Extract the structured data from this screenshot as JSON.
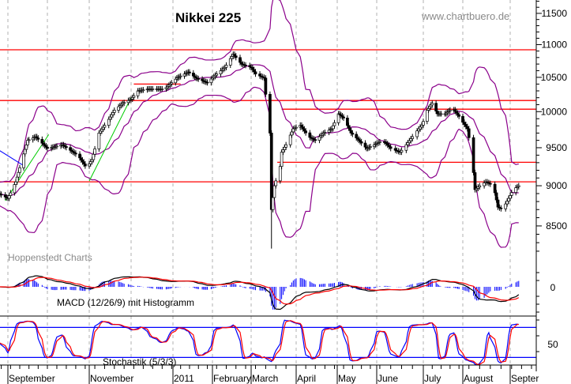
{
  "chart_data": {
    "type": "candlestick",
    "title": "Nikkei 225",
    "watermark": "www.chartbuero.de",
    "source": "Hoppenstedt Charts",
    "y_scale": "log",
    "ylim": [
      8100,
      11700
    ],
    "y_ticks": [
      11500,
      11000,
      10500,
      10000,
      9500,
      9000,
      8500
    ],
    "grid": "vertical dashed at month starts",
    "x_tick_labels": [
      {
        "date": "2010-09-01",
        "label": "September"
      },
      {
        "date": "2010-11-01",
        "label": "November"
      },
      {
        "date": "2011-01-01",
        "label": "2011"
      },
      {
        "date": "2011-02-01",
        "label": "February"
      },
      {
        "date": "2011-03-01",
        "label": "March"
      },
      {
        "date": "2011-04-01",
        "label": "April"
      },
      {
        "date": "2011-05-01",
        "label": "May"
      },
      {
        "date": "2011-06-01",
        "label": "June"
      },
      {
        "date": "2011-07-01",
        "label": "July"
      },
      {
        "date": "2011-08-01",
        "label": "August"
      },
      {
        "date": "2011-09-01",
        "label": "Septer"
      }
    ],
    "closes": [
      [
        "2010-08-25",
        8900
      ],
      [
        "2010-09-01",
        8840
      ],
      [
        "2010-09-07",
        9050
      ],
      [
        "2010-09-16",
        9600
      ],
      [
        "2010-09-22",
        9650
      ],
      [
        "2010-10-01",
        9490
      ],
      [
        "2010-10-12",
        9540
      ],
      [
        "2010-10-24",
        9390
      ],
      [
        "2010-10-30",
        9230
      ],
      [
        "2010-11-03",
        9340
      ],
      [
        "2010-11-08",
        9700
      ],
      [
        "2010-11-14",
        9860
      ],
      [
        "2010-11-19",
        10020
      ],
      [
        "2010-11-25",
        10120
      ],
      [
        "2010-12-01",
        10180
      ],
      [
        "2010-12-06",
        10300
      ],
      [
        "2010-12-14",
        10330
      ],
      [
        "2010-12-26",
        10330
      ],
      [
        "2011-01-04",
        10490
      ],
      [
        "2011-01-13",
        10580
      ],
      [
        "2011-01-19",
        10490
      ],
      [
        "2011-01-28",
        10420
      ],
      [
        "2011-02-04",
        10550
      ],
      [
        "2011-02-10",
        10650
      ],
      [
        "2011-02-16",
        10850
      ],
      [
        "2011-02-22",
        10700
      ],
      [
        "2011-03-01",
        10650
      ],
      [
        "2011-03-04",
        10550
      ],
      [
        "2011-03-10",
        10490
      ],
      [
        "2011-03-11",
        10250
      ],
      [
        "2011-03-14",
        9700
      ],
      [
        "2011-03-15",
        8700
      ],
      [
        "2011-03-17",
        9000
      ],
      [
        "2011-03-21",
        9250
      ],
      [
        "2011-03-22",
        9440
      ],
      [
        "2011-03-25",
        9540
      ],
      [
        "2011-03-30",
        9760
      ],
      [
        "2011-04-04",
        9810
      ],
      [
        "2011-04-10",
        9650
      ],
      [
        "2011-04-15",
        9600
      ],
      [
        "2011-04-21",
        9700
      ],
      [
        "2011-04-27",
        9760
      ],
      [
        "2011-05-02",
        9970
      ],
      [
        "2011-05-06",
        9910
      ],
      [
        "2011-05-12",
        9700
      ],
      [
        "2011-05-18",
        9600
      ],
      [
        "2011-05-24",
        9490
      ],
      [
        "2011-05-30",
        9540
      ],
      [
        "2011-06-05",
        9600
      ],
      [
        "2011-06-10",
        9490
      ],
      [
        "2011-06-16",
        9440
      ],
      [
        "2011-06-20",
        9540
      ],
      [
        "2011-06-24",
        9650
      ],
      [
        "2011-06-30",
        9810
      ],
      [
        "2011-07-04",
        10020
      ],
      [
        "2011-07-08",
        10120
      ],
      [
        "2011-07-12",
        9970
      ],
      [
        "2011-07-18",
        9970
      ],
      [
        "2011-07-24",
        10050
      ],
      [
        "2011-07-30",
        9910
      ],
      [
        "2011-08-04",
        9760
      ],
      [
        "2011-08-07",
        9390
      ],
      [
        "2011-08-09",
        8950
      ],
      [
        "2011-08-12",
        9000
      ],
      [
        "2011-08-16",
        9050
      ],
      [
        "2011-08-21",
        9000
      ],
      [
        "2011-08-24",
        8730
      ],
      [
        "2011-08-27",
        8700
      ],
      [
        "2011-08-31",
        8840
      ],
      [
        "2011-09-03",
        8950
      ],
      [
        "2011-09-07",
        9000
      ]
    ],
    "march_low": 8230,
    "horizontal_levels": [
      {
        "price": 10920,
        "from": "2010-08-25",
        "to": "2011-09-30",
        "color": "#ff0000"
      },
      {
        "price": 10160,
        "from": "2010-08-25",
        "to": "2011-09-30",
        "color": "#ff0000"
      },
      {
        "price": 10400,
        "from": "2010-12-03",
        "to": "2011-01-07",
        "color": "#ff0000"
      },
      {
        "price": 10035,
        "from": "2011-03-22",
        "to": "2011-09-30",
        "color": "#ff0000"
      },
      {
        "price": 9305,
        "from": "2011-03-19",
        "to": "2011-09-30",
        "color": "#ff0000"
      },
      {
        "price": 9050,
        "from": "2010-08-25",
        "to": "2011-09-30",
        "color": "#ff0000"
      }
    ],
    "trend_lines": [
      {
        "from": [
          "2010-08-30",
          8810
        ],
        "to": [
          "2010-10-02",
          9680
        ],
        "color": "#00cc00"
      },
      {
        "from": [
          "2010-11-01",
          9060
        ],
        "to": [
          "2010-12-01",
          10200
        ],
        "color": "#00cc00"
      },
      {
        "from": [
          "2010-08-25",
          9470
        ],
        "to": [
          "2010-09-14",
          9250
        ],
        "color": "#0000ff"
      }
    ],
    "bollinger": {
      "period": 20,
      "width": 2,
      "color": "#8b008b"
    },
    "macd": {
      "label": "MACD (12/26/9) mit Histogramm",
      "tick": "0",
      "line_color": "#000000",
      "signal_color": "#ff0000",
      "hist_color": "#0000ff"
    },
    "stochastic": {
      "label": "Stochastik (5/3/3)",
      "tick": "50",
      "levels": [
        20,
        80
      ],
      "k_color": "#0000ff",
      "d_color": "#ff0000"
    }
  }
}
